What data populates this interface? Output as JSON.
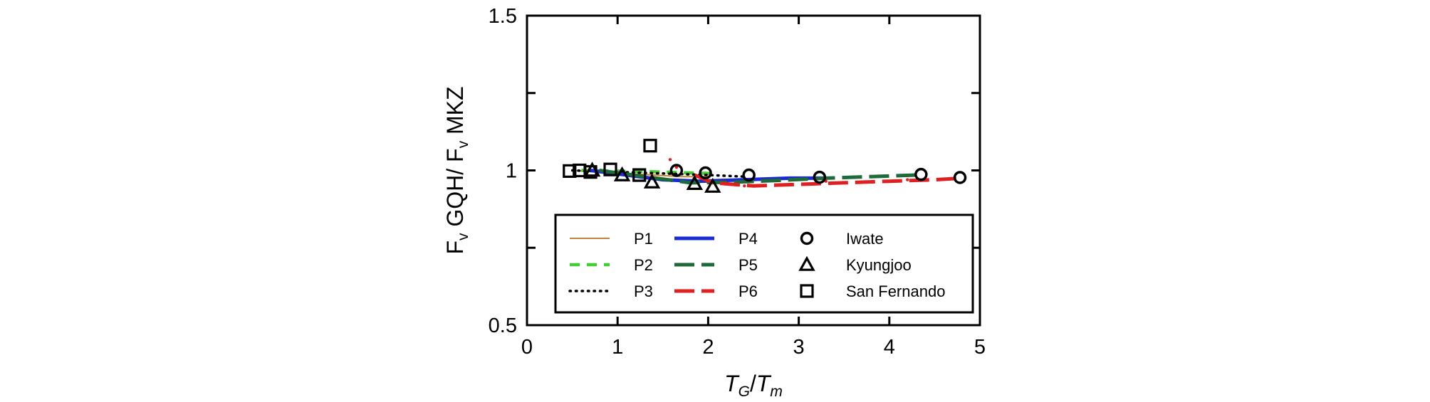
{
  "chart_data": {
    "type": "line",
    "xlabel": "T_G/T_m",
    "xlabel_parts": {
      "base1": "T",
      "sub1": "G",
      "slash": "/",
      "base2": "T",
      "sub2": "m"
    },
    "ylabel": "F_v GQH/ F_v MKZ",
    "ylabel_parts": {
      "p1": "F",
      "s1": "v",
      "p2": " GQH/ F",
      "s2": "v",
      "p3": " MKZ"
    },
    "xlim": [
      0,
      5
    ],
    "ylim": [
      0.5,
      1.5
    ],
    "x_ticks": [
      0,
      1,
      2,
      3,
      4,
      5
    ],
    "x_tick_labels": [
      "0",
      "1",
      "2",
      "3",
      "4",
      "5"
    ],
    "y_ticks": [
      0.5,
      1,
      1.5
    ],
    "y_tick_labels": [
      "0.5",
      "1",
      "1.5"
    ],
    "grid": false,
    "legend_position": "bottom",
    "series": [
      {
        "name": "P1",
        "style": "solid-thin",
        "color": "#c8823a",
        "x": [
          0.5,
          0.8,
          1.1,
          1.4,
          1.7,
          2.0
        ],
        "y": [
          1.0,
          0.995,
          0.99,
          0.985,
          0.98,
          0.98
        ]
      },
      {
        "name": "P2",
        "style": "dashed",
        "color": "#44cc33",
        "x": [
          0.6,
          0.9,
          1.2,
          1.5,
          1.8,
          2.05
        ],
        "y": [
          1.0,
          0.998,
          0.997,
          0.995,
          0.992,
          0.99
        ]
      },
      {
        "name": "P3",
        "style": "dotted",
        "color": "#000000",
        "x": [
          0.5,
          1.0,
          1.5,
          2.0,
          2.4
        ],
        "y": [
          1.0,
          0.995,
          0.99,
          0.985,
          0.98
        ]
      },
      {
        "name": "P4",
        "style": "solid-thick",
        "color": "#1a2bd6",
        "x": [
          0.7,
          1.1,
          1.5,
          1.9,
          2.4,
          2.9,
          3.3
        ],
        "y": [
          1.0,
          0.985,
          0.97,
          0.965,
          0.97,
          0.975,
          0.975
        ]
      },
      {
        "name": "P5",
        "style": "longdash",
        "color": "#1e6b3a",
        "x": [
          0.8,
          1.3,
          1.8,
          2.3,
          2.8,
          3.3,
          3.8,
          4.3
        ],
        "y": [
          1.0,
          0.98,
          0.96,
          0.962,
          0.968,
          0.975,
          0.98,
          0.985
        ]
      },
      {
        "name": "P6",
        "style": "longdash",
        "color": "#e02020",
        "x": [
          1.85,
          2.05,
          2.5,
          3.0,
          3.5,
          4.0,
          4.5,
          4.8
        ],
        "y": [
          0.985,
          0.96,
          0.95,
          0.955,
          0.96,
          0.965,
          0.97,
          0.975
        ]
      }
    ],
    "stray_points": [
      {
        "series": "P6",
        "x": 1.58,
        "y": 1.035
      },
      {
        "series": "P6",
        "x": 1.65,
        "y": 1.01
      },
      {
        "series": "P6",
        "x": 2.4,
        "y": 0.95
      },
      {
        "series": "P6",
        "x": 3.3,
        "y": 0.965
      },
      {
        "series": "P6",
        "x": 4.2,
        "y": 0.97
      }
    ],
    "markers": [
      {
        "name": "Iwate",
        "shape": "circle",
        "points": [
          [
            1.65,
            1.0
          ],
          [
            1.97,
            0.992
          ],
          [
            2.45,
            0.985
          ],
          [
            3.23,
            0.978
          ],
          [
            4.35,
            0.987
          ],
          [
            4.78,
            0.977
          ]
        ]
      },
      {
        "name": "Kyungjoo",
        "shape": "triangle",
        "points": [
          [
            0.72,
            1.0
          ],
          [
            1.05,
            0.985
          ],
          [
            1.38,
            0.962
          ],
          [
            1.85,
            0.957
          ],
          [
            2.05,
            0.948
          ]
        ]
      },
      {
        "name": "San Fernando",
        "shape": "square",
        "points": [
          [
            0.47,
            0.998
          ],
          [
            0.58,
            1.0
          ],
          [
            0.7,
            0.995
          ],
          [
            0.92,
            1.003
          ],
          [
            1.24,
            0.985
          ],
          [
            1.36,
            1.08
          ]
        ]
      }
    ],
    "legend": [
      {
        "label": "P1",
        "kind": "line",
        "style": "solid-thin",
        "color": "#c8823a"
      },
      {
        "label": "P2",
        "kind": "line",
        "style": "dashed",
        "color": "#44cc33"
      },
      {
        "label": "P3",
        "kind": "line",
        "style": "dotted",
        "color": "#000000"
      },
      {
        "label": "P4",
        "kind": "line",
        "style": "solid-thick",
        "color": "#1a2bd6"
      },
      {
        "label": "P5",
        "kind": "line",
        "style": "longdash",
        "color": "#1e6b3a"
      },
      {
        "label": "P6",
        "kind": "line",
        "style": "longdash",
        "color": "#e02020"
      },
      {
        "label": "Iwate",
        "kind": "marker",
        "shape": "circle"
      },
      {
        "label": "Kyungjoo",
        "kind": "marker",
        "shape": "triangle"
      },
      {
        "label": "San Fernando",
        "kind": "marker",
        "shape": "square"
      }
    ]
  }
}
